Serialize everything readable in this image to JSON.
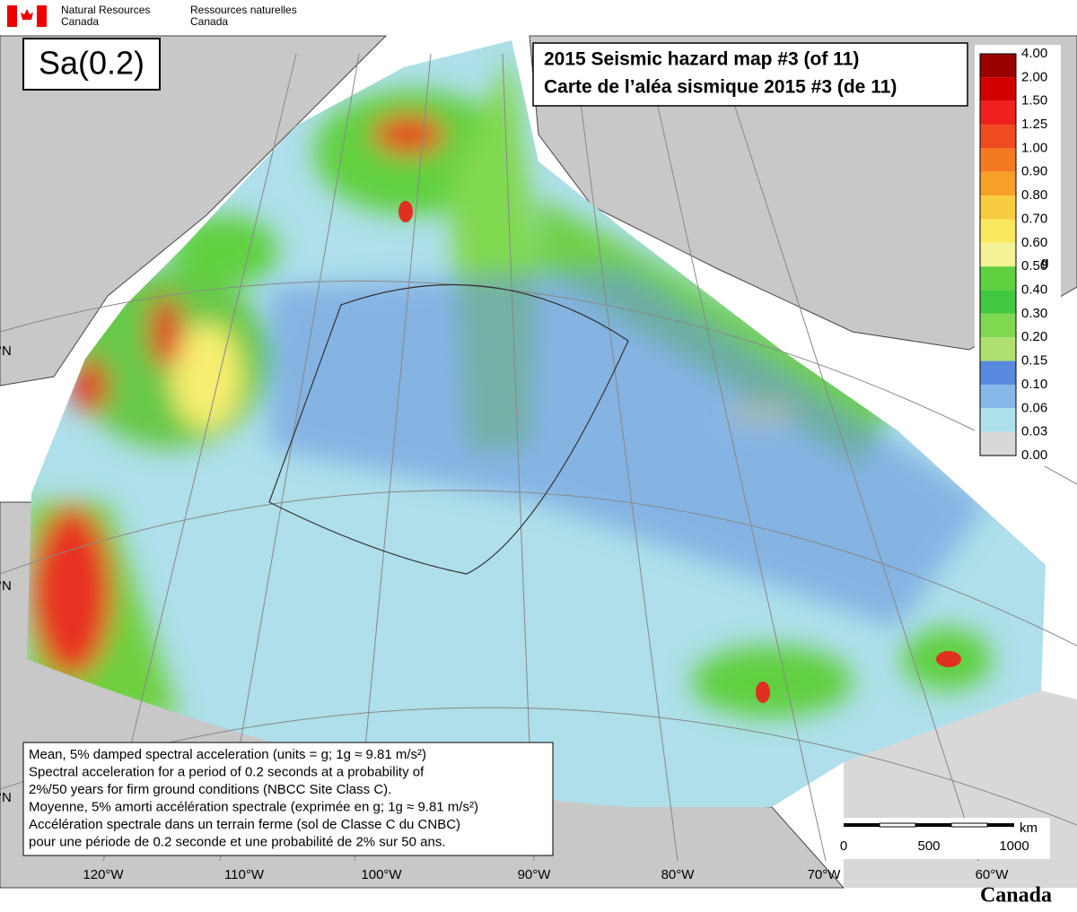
{
  "header": {
    "en": [
      "Natural Resources",
      "Canada"
    ],
    "fr": [
      "Ressources naturelles",
      "Canada"
    ]
  },
  "map": {
    "parameter": "Sa(0.2)",
    "title": [
      "2015 Seismic hazard map #3 (of 11)",
      "Carte de l’aléa sismique 2015 #3 (de 11)"
    ],
    "legend": {
      "unit": "g",
      "labels": [
        "4.00",
        "2.00",
        "1.50",
        "1.25",
        "1.00",
        "0.90",
        "0.80",
        "0.70",
        "0.60",
        "0.50",
        "0.40",
        "0.30",
        "0.20",
        "0.15",
        "0.10",
        "0.06",
        "0.03",
        "0.00"
      ],
      "colors": [
        "#9a0000",
        "#d40000",
        "#f02020",
        "#f04a20",
        "#f47a20",
        "#f6a028",
        "#f8cc40",
        "#fae860",
        "#f4f496",
        "#60d040",
        "#40c840",
        "#80d850",
        "#b0e070",
        "#5a8ae0",
        "#86b8ea",
        "#aee0ea",
        "#d8d8d8"
      ]
    },
    "description": [
      "Mean, 5% damped spectral acceleration (units = g; 1g ≈ 9.81 m/s²)",
      "Spectral acceleration for a period of 0.2 seconds at a probability of",
      "2%/50 years for firm ground conditions (NBCC Site Class C).",
      "Moyenne, 5% amorti accélération spectrale (exprimée en g; 1g ≈ 9.81 m/s²)",
      "Accélération spectrale dans un terrain ferme (sol de Classe C du CNBC)",
      "pour une période de 0.2 seconde et une probabilité de 2% sur 50 ans."
    ],
    "scale_bar": {
      "unit": "km",
      "labels": [
        "0",
        "500",
        "1000"
      ]
    },
    "longitudes": [
      "120°W",
      "110°W",
      "100°W",
      "90°W",
      "80°W",
      "70°W",
      "60°W"
    ],
    "latitudes": [
      "°N",
      "°N",
      "°N"
    ]
  },
  "footer": {
    "wordmark": "Canada"
  }
}
